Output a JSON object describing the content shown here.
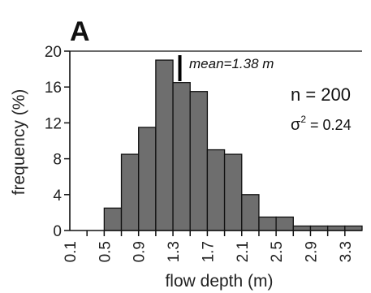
{
  "chart_data": {
    "type": "bar",
    "panel_label": "A",
    "xlabel": "flow depth (m)",
    "ylabel": "frequency (%)",
    "bin_edges": [
      0.1,
      0.3,
      0.5,
      0.7,
      0.9,
      1.1,
      1.3,
      1.5,
      1.7,
      1.9,
      2.1,
      2.3,
      2.5,
      2.7,
      2.9,
      3.1,
      3.3,
      3.5
    ],
    "values": [
      0,
      0,
      2.5,
      8.5,
      11.5,
      19,
      16.5,
      15.5,
      9,
      8.5,
      4,
      1.5,
      1.5,
      0.5,
      0.5,
      0.5,
      0.5
    ],
    "xticks": [
      "0.1",
      "0.5",
      "0.9",
      "1.3",
      "1.7",
      "2.1",
      "2.5",
      "2.9",
      "3.3"
    ],
    "xtick_values": [
      0.1,
      0.5,
      0.9,
      1.3,
      1.7,
      2.1,
      2.5,
      2.9,
      3.3
    ],
    "yticks": [
      "0",
      "4",
      "8",
      "12",
      "16",
      "20"
    ],
    "ytick_values": [
      0,
      4,
      8,
      12,
      16,
      20
    ],
    "xlim": [
      0.1,
      3.5
    ],
    "ylim": [
      0,
      20
    ],
    "mean": 1.38,
    "mean_label": "mean=1.38  m",
    "n_label": "n = 200",
    "variance_symbol": "σ",
    "variance_exp": "2",
    "variance_value": " = 0.24",
    "bar_color": "#6e6e6e",
    "edge_color": "#111111",
    "grid": false
  }
}
